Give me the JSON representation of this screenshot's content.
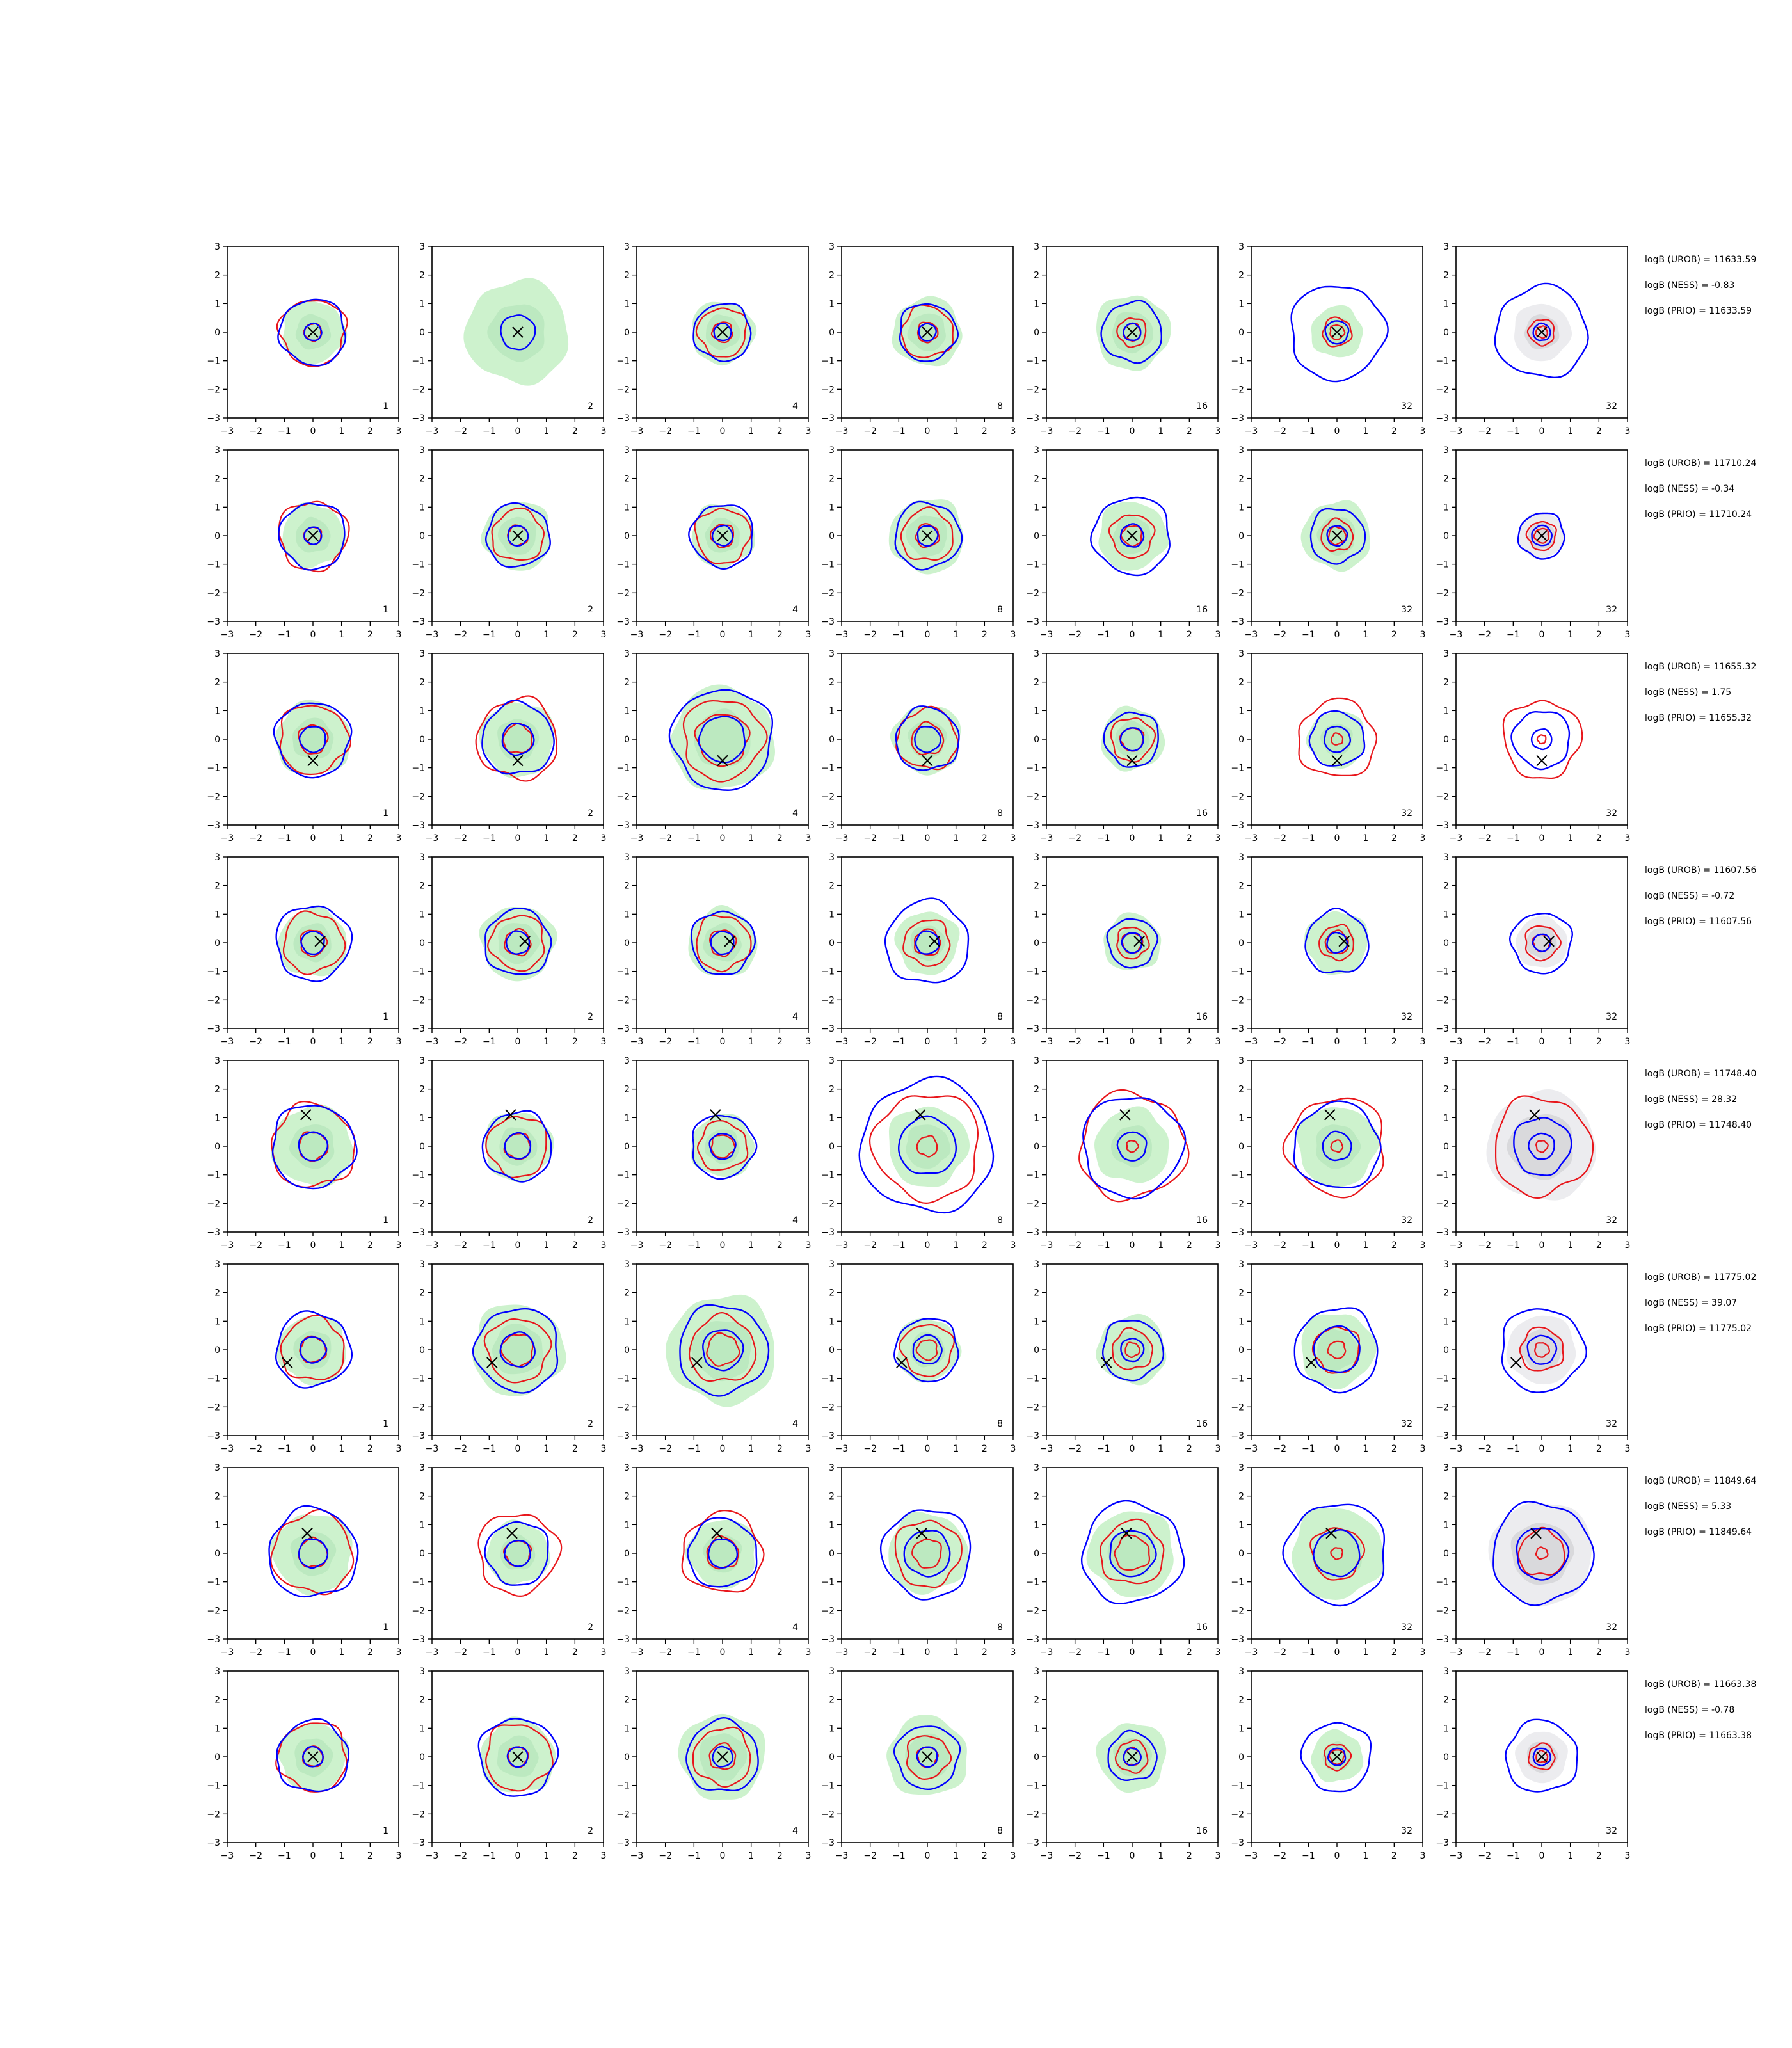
{
  "chart_data": {
    "type": "contour-grid",
    "xlim": [
      -3,
      3
    ],
    "ylim": [
      -3,
      3
    ],
    "xticks": [
      "−3",
      "−2",
      "−1",
      "0",
      "1",
      "2",
      "3"
    ],
    "yticks": [
      "3",
      "2",
      "1",
      "0",
      "−1",
      "−2",
      "−3"
    ],
    "columns": [
      "1",
      "2",
      "4",
      "8",
      "16",
      "32",
      "32"
    ],
    "colors": {
      "blue_contour": "#0000ff",
      "red_contour": "#e8161b",
      "green_fill": "#cdf2cd",
      "grey_fill": "#d9d9dc",
      "marker": "#000000"
    },
    "rows": [
      {
        "marker": [
          0.0,
          0.0
        ],
        "annotations": [
          "logB (UROB) = 11633.59",
          "logB (NESS) = -0.83",
          "logB (PRIO) = 11633.59"
        ],
        "panels": [
          {
            "blue": [
              0.3,
              1.15
            ],
            "red": [
              0.3,
              1.15
            ],
            "green": 1.1,
            "grey": 0
          },
          {
            "blue": [
              0.6
            ],
            "red": [],
            "green": 1.8,
            "grey": 0
          },
          {
            "blue": [
              0.3,
              1.0
            ],
            "red": [
              0.35,
              0.85
            ],
            "green": 1.1,
            "grey": 0
          },
          {
            "blue": [
              0.3,
              1.0
            ],
            "red": [
              0.35,
              0.9
            ],
            "green": 1.2,
            "grey": 0
          },
          {
            "blue": [
              0.3,
              1.05
            ],
            "red": [
              0.3,
              0.5
            ],
            "green": 1.3,
            "grey": 0
          },
          {
            "blue": [
              0.4,
              1.65
            ],
            "red": [
              0.25,
              0.5
            ],
            "green": 0.9,
            "grey": 0
          },
          {
            "blue": [
              0.3,
              1.6
            ],
            "red": [
              0.2,
              0.45
            ],
            "green": 0,
            "grey": 1.0
          }
        ]
      },
      {
        "marker": [
          0.0,
          0.0
        ],
        "annotations": [
          "logB (UROB) = 11710.24",
          "logB (NESS) = -0.34",
          "logB (PRIO) = 11710.24"
        ],
        "panels": [
          {
            "blue": [
              0.3,
              1.15
            ],
            "red": [
              0.3,
              1.2
            ],
            "green": 1.1,
            "grey": 0
          },
          {
            "blue": [
              0.35,
              1.1
            ],
            "red": [
              0.35,
              0.9
            ],
            "green": 1.2,
            "grey": 0
          },
          {
            "blue": [
              0.35,
              1.1
            ],
            "red": [
              0.4,
              0.95
            ],
            "green": 1.1,
            "grey": 0
          },
          {
            "blue": [
              0.35,
              1.15
            ],
            "red": [
              0.4,
              0.9
            ],
            "green": 1.3,
            "grey": 0
          },
          {
            "blue": [
              0.4,
              1.35
            ],
            "red": [
              0.35,
              0.75
            ],
            "green": 1.2,
            "grey": 0
          },
          {
            "blue": [
              0.35,
              0.95
            ],
            "red": [
              0.3,
              0.55
            ],
            "green": 1.2,
            "grey": 0
          },
          {
            "blue": [
              0.35,
              0.8
            ],
            "red": [
              0.25,
              0.5
            ],
            "green": 0,
            "grey": 0.8
          }
        ]
      },
      {
        "marker": [
          0.0,
          -0.75
        ],
        "annotations": [
          "logB (UROB) = 11655.32",
          "logB (NESS) = 1.75",
          "logB (PRIO) = 11655.32"
        ],
        "panels": [
          {
            "blue": [
              0.45,
              1.3
            ],
            "red": [
              0.5,
              1.2
            ],
            "green": 1.3,
            "grey": 0
          },
          {
            "blue": [
              0.55,
              1.25
            ],
            "red": [
              0.5,
              1.4
            ],
            "green": 1.3,
            "grey": 0
          },
          {
            "blue": [
              0.8,
              1.75
            ],
            "red": [
              0.9,
              1.4
            ],
            "green": 1.8,
            "grey": 0
          },
          {
            "blue": [
              0.45,
              1.1
            ],
            "red": [
              0.55,
              1.05
            ],
            "green": 1.2,
            "grey": 0
          },
          {
            "blue": [
              0.4,
              0.95
            ],
            "red": [
              0.4,
              0.75
            ],
            "green": 1.1,
            "grey": 0
          },
          {
            "blue": [
              0.45,
              0.95
            ],
            "red": [
              0.2,
              1.35
            ],
            "green": 1.0,
            "grey": 0
          },
          {
            "blue": [
              0.35,
              1.0
            ],
            "red": [
              0.15,
              1.35
            ],
            "green": 0,
            "grey": 0
          }
        ]
      },
      {
        "marker": [
          0.25,
          0.05
        ],
        "annotations": [
          "logB (UROB) = 11607.56",
          "logB (NESS) = -0.72",
          "logB (PRIO) = 11607.56"
        ],
        "panels": [
          {
            "blue": [
              0.4,
              1.3
            ],
            "red": [
              0.45,
              1.05
            ],
            "green": 1.2,
            "grey": 0
          },
          {
            "blue": [
              0.4,
              1.15
            ],
            "red": [
              0.45,
              0.95
            ],
            "green": 1.3,
            "grey": 0
          },
          {
            "blue": [
              0.4,
              1.1
            ],
            "red": [
              0.45,
              0.95
            ],
            "green": 1.2,
            "grey": 0
          },
          {
            "blue": [
              0.4,
              1.45
            ],
            "red": [
              0.45,
              0.8
            ],
            "green": 1.1,
            "grey": 0
          },
          {
            "blue": [
              0.35,
              0.85
            ],
            "red": [
              0.35,
              0.55
            ],
            "green": 1.0,
            "grey": 0
          },
          {
            "blue": [
              0.35,
              1.1
            ],
            "red": [
              0.4,
              0.6
            ],
            "green": 1.1,
            "grey": 0
          },
          {
            "blue": [
              0.3,
              1.05
            ],
            "red": [
              0.3,
              0.6
            ],
            "green": 0,
            "grey": 0.9
          }
        ]
      },
      {
        "marker": [
          -0.25,
          1.1
        ],
        "annotations": [
          "logB (UROB) = 11748.40",
          "logB (NESS) = 28.32",
          "logB (PRIO) = 11748.40"
        ],
        "panels": [
          {
            "blue": [
              0.5,
              1.45
            ],
            "red": [
              0.5,
              1.45
            ],
            "green": 1.4,
            "grey": 0
          },
          {
            "blue": [
              0.45,
              1.2
            ],
            "red": [
              0.45,
              1.05
            ],
            "green": 1.2,
            "grey": 0
          },
          {
            "blue": [
              0.45,
              1.1
            ],
            "red": [
              0.4,
              0.85
            ],
            "green": 1.1,
            "grey": 0
          },
          {
            "blue": [
              1.0,
              2.3
            ],
            "red": [
              0.35,
              1.85
            ],
            "green": 1.4,
            "grey": 0
          },
          {
            "blue": [
              0.5,
              1.75
            ],
            "red": [
              0.2,
              1.85
            ],
            "green": 1.3,
            "grey": 0
          },
          {
            "blue": [
              0.5,
              1.5
            ],
            "red": [
              0.2,
              1.7
            ],
            "green": 1.4,
            "grey": 0
          },
          {
            "blue": [
              0.45,
              1.0
            ],
            "red": [
              0.2,
              1.7
            ],
            "green": 0,
            "grey": 1.9
          }
        ]
      },
      {
        "marker": [
          -0.9,
          -0.45
        ],
        "annotations": [
          "logB (UROB) = 11775.02",
          "logB (NESS) = 39.07",
          "logB (PRIO) = 11775.02"
        ],
        "panels": [
          {
            "blue": [
              0.45,
              1.3
            ],
            "red": [
              0.45,
              1.1
            ],
            "green": 1.2,
            "grey": 0
          },
          {
            "blue": [
              0.6,
              1.45
            ],
            "red": [
              0.55,
              1.1
            ],
            "green": 1.6,
            "grey": 0
          },
          {
            "blue": [
              0.7,
              1.55
            ],
            "red": [
              0.55,
              1.15
            ],
            "green": 1.9,
            "grey": 0
          },
          {
            "blue": [
              0.5,
              1.1
            ],
            "red": [
              0.35,
              0.9
            ],
            "green": 1.1,
            "grey": 0
          },
          {
            "blue": [
              0.4,
              1.05
            ],
            "red": [
              0.25,
              0.7
            ],
            "green": 1.2,
            "grey": 0
          },
          {
            "blue": [
              0.8,
              1.45
            ],
            "red": [
              0.3,
              0.8
            ],
            "green": 1.3,
            "grey": 0
          },
          {
            "blue": [
              0.5,
              1.45
            ],
            "red": [
              0.25,
              0.75
            ],
            "green": 0,
            "grey": 1.2
          }
        ]
      },
      {
        "marker": [
          -0.2,
          0.7
        ],
        "annotations": [
          "logB (UROB) = 11849.64",
          "logB (NESS) = 5.33",
          "logB (PRIO) = 11849.64"
        ],
        "panels": [
          {
            "blue": [
              0.5,
              1.55
            ],
            "red": [
              0.5,
              1.4
            ],
            "green": 1.4,
            "grey": 0
          },
          {
            "blue": [
              0.45,
              1.1
            ],
            "red": [
              0.45,
              1.4
            ],
            "green": 1.1,
            "grey": 0
          },
          {
            "blue": [
              0.5,
              1.2
            ],
            "red": [
              0.55,
              1.4
            ],
            "green": 1.2,
            "grey": 0
          },
          {
            "blue": [
              0.8,
              1.55
            ],
            "red": [
              0.5,
              1.15
            ],
            "green": 1.4,
            "grey": 0
          },
          {
            "blue": [
              0.8,
              1.75
            ],
            "red": [
              0.6,
              1.1
            ],
            "green": 1.5,
            "grey": 0
          },
          {
            "blue": [
              0.8,
              1.75
            ],
            "red": [
              0.2,
              0.9
            ],
            "green": 1.6,
            "grey": 0
          },
          {
            "blue": [
              0.9,
              1.75
            ],
            "red": [
              0.2,
              0.8
            ],
            "green": 0,
            "grey": 1.8
          }
        ]
      },
      {
        "marker": [
          0.0,
          0.0
        ],
        "annotations": [
          "logB (UROB) = 11663.38",
          "logB (NESS) = -0.78",
          "logB (PRIO) = 11663.38"
        ],
        "panels": [
          {
            "blue": [
              0.35,
              1.25
            ],
            "red": [
              0.35,
              1.2
            ],
            "green": 1.2,
            "grey": 0
          },
          {
            "blue": [
              0.35,
              1.35
            ],
            "red": [
              0.35,
              1.15
            ],
            "green": 1.3,
            "grey": 0
          },
          {
            "blue": [
              0.35,
              1.25
            ],
            "red": [
              0.45,
              1.0
            ],
            "green": 1.5,
            "grey": 0
          },
          {
            "blue": [
              0.35,
              1.1
            ],
            "red": [
              0.35,
              0.75
            ],
            "green": 1.4,
            "grey": 0
          },
          {
            "blue": [
              0.3,
              0.85
            ],
            "red": [
              0.3,
              0.55
            ],
            "green": 1.2,
            "grey": 0
          },
          {
            "blue": [
              0.3,
              1.2
            ],
            "red": [
              0.25,
              0.45
            ],
            "green": 0.9,
            "grey": 0
          },
          {
            "blue": [
              0.3,
              1.25
            ],
            "red": [
              0.2,
              0.45
            ],
            "green": 0,
            "grey": 0.9
          }
        ]
      }
    ]
  }
}
